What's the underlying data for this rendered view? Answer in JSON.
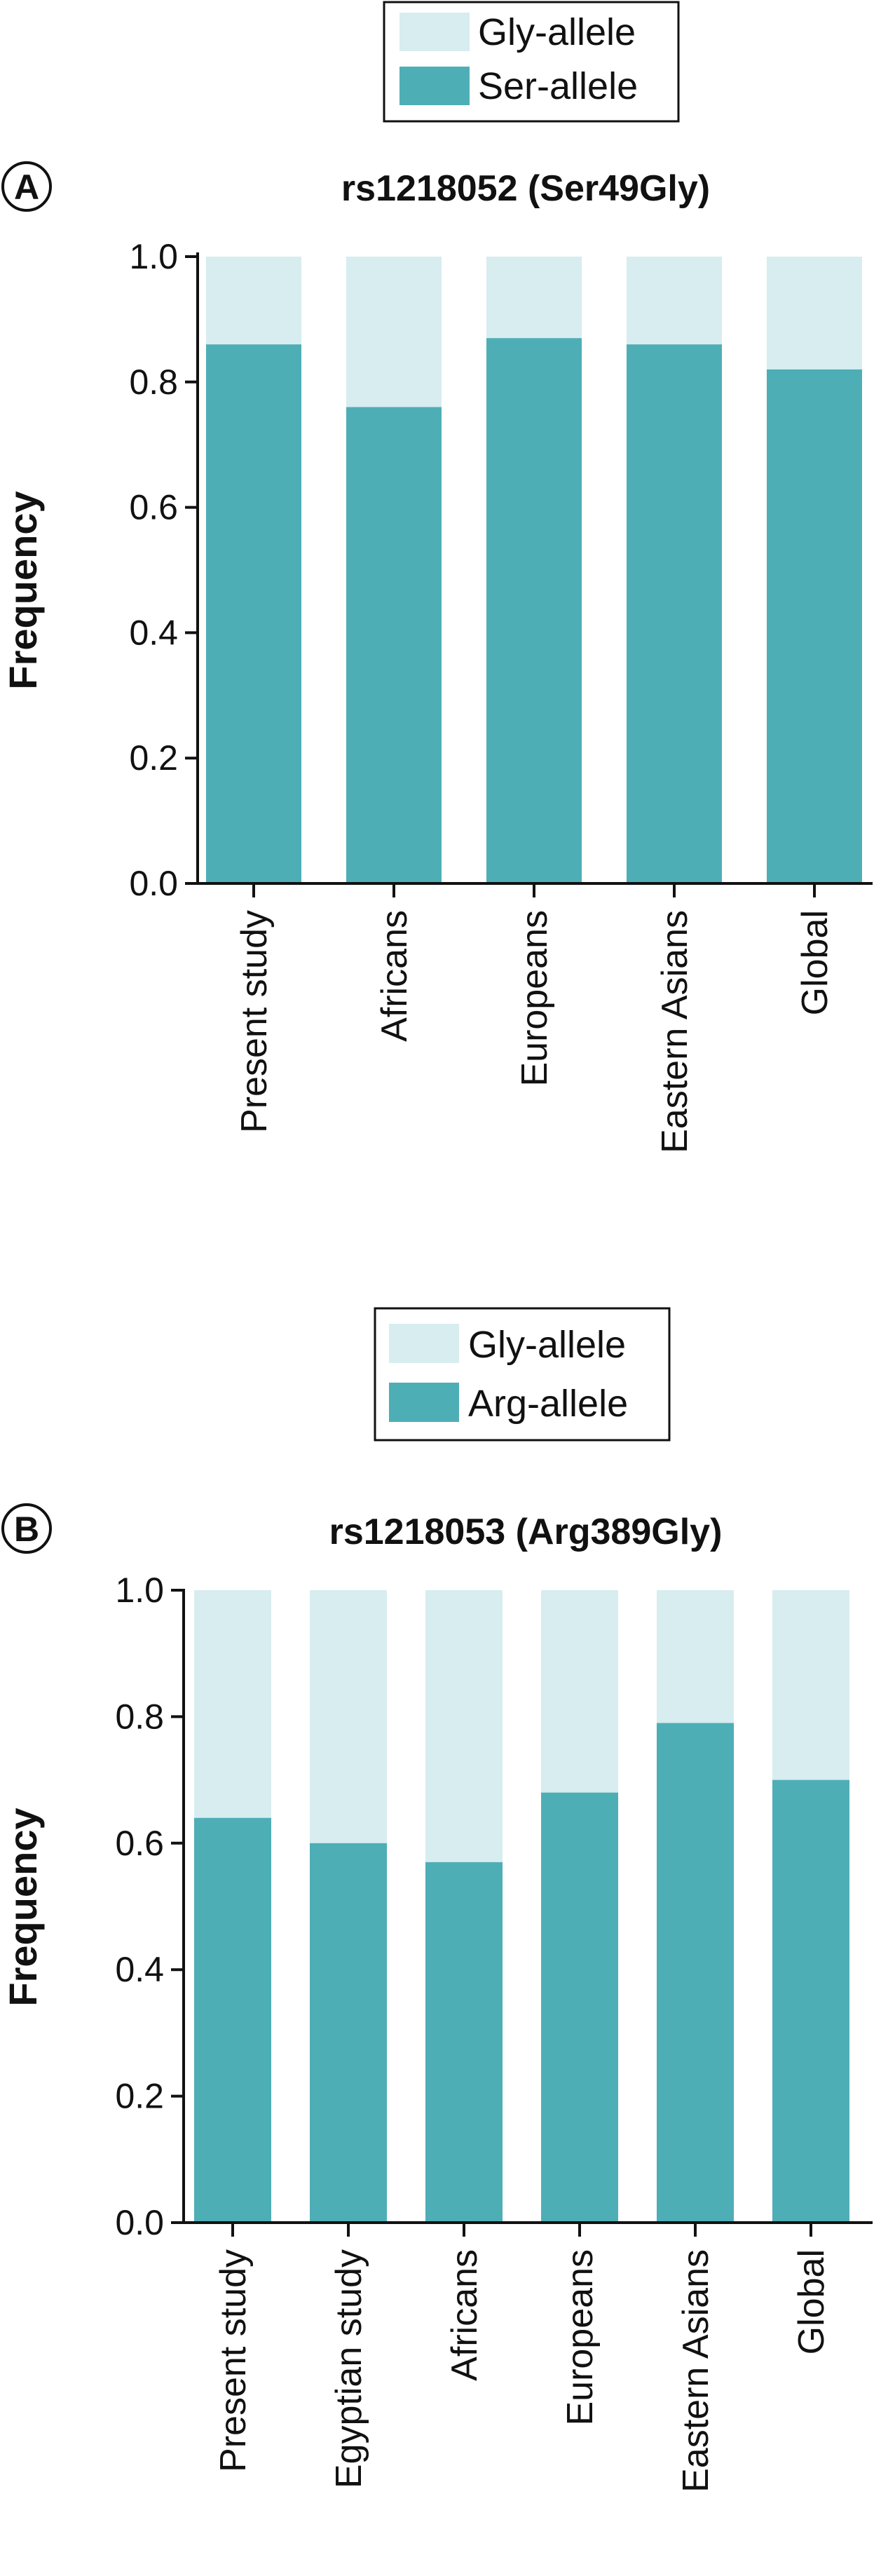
{
  "colors": {
    "gly": "#d7edf0",
    "major": "#4eaeb6",
    "axis": "#111111"
  },
  "chart_data": [
    {
      "type": "bar",
      "stacked": true,
      "panel": "A",
      "title": "rs1218052 (Ser49Gly)",
      "ylabel": "Frequency",
      "xlabel": "",
      "ylim": [
        0,
        1.0
      ],
      "yticks": [
        "0.0",
        "0.2",
        "0.4",
        "0.6",
        "0.8",
        "1.0"
      ],
      "categories": [
        "Present study",
        "Africans",
        "Europeans",
        "Eastern Asians",
        "Global"
      ],
      "series": [
        {
          "name": "Ser-allele",
          "values": [
            0.86,
            0.76,
            0.87,
            0.86,
            0.82
          ]
        },
        {
          "name": "Gly-allele",
          "values": [
            0.14,
            0.24,
            0.13,
            0.14,
            0.18
          ]
        }
      ],
      "legend": [
        "Gly-allele",
        "Ser-allele"
      ],
      "legend_position": "top-center",
      "grid": false
    },
    {
      "type": "bar",
      "stacked": true,
      "panel": "B",
      "title": "rs1218053 (Arg389Gly)",
      "ylabel": "Frequency",
      "xlabel": "",
      "ylim": [
        0,
        1.0
      ],
      "yticks": [
        "0.0",
        "0.2",
        "0.4",
        "0.6",
        "0.8",
        "1.0"
      ],
      "categories": [
        "Present study",
        "Egyptian study",
        "Africans",
        "Europeans",
        "Eastern Asians",
        "Global"
      ],
      "series": [
        {
          "name": "Arg-allele",
          "values": [
            0.64,
            0.6,
            0.57,
            0.68,
            0.79,
            0.7
          ]
        },
        {
          "name": "Gly-allele",
          "values": [
            0.36,
            0.4,
            0.43,
            0.32,
            0.21,
            0.3
          ]
        }
      ],
      "legend": [
        "Gly-allele",
        "Arg-allele"
      ],
      "legend_position": "top-center",
      "grid": false
    }
  ]
}
